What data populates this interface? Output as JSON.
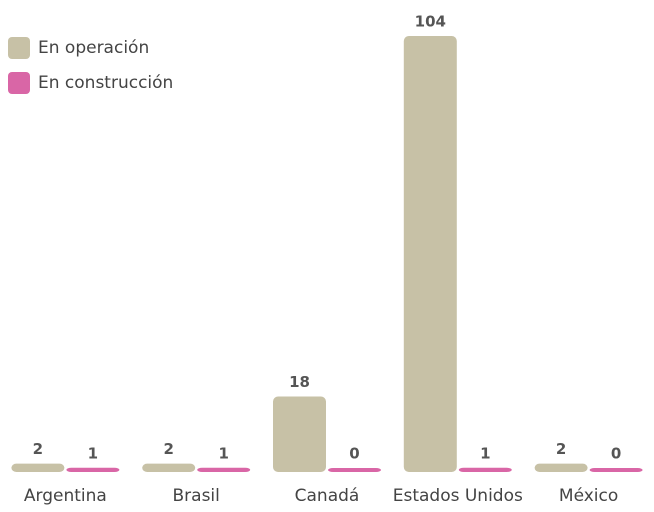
{
  "chart_data": {
    "type": "bar",
    "categories": [
      "Argentina",
      "Brasil",
      "Canadá",
      "Estados Unidos",
      "México"
    ],
    "series": [
      {
        "name": "En operación",
        "color": "#c7c1a6",
        "values": [
          2,
          2,
          18,
          104,
          2
        ]
      },
      {
        "name": "En construcción",
        "color": "#d966a6",
        "values": [
          1,
          1,
          0,
          1,
          0
        ]
      }
    ],
    "ylim": [
      0,
      104
    ],
    "grid": false,
    "legend": "top-left"
  }
}
